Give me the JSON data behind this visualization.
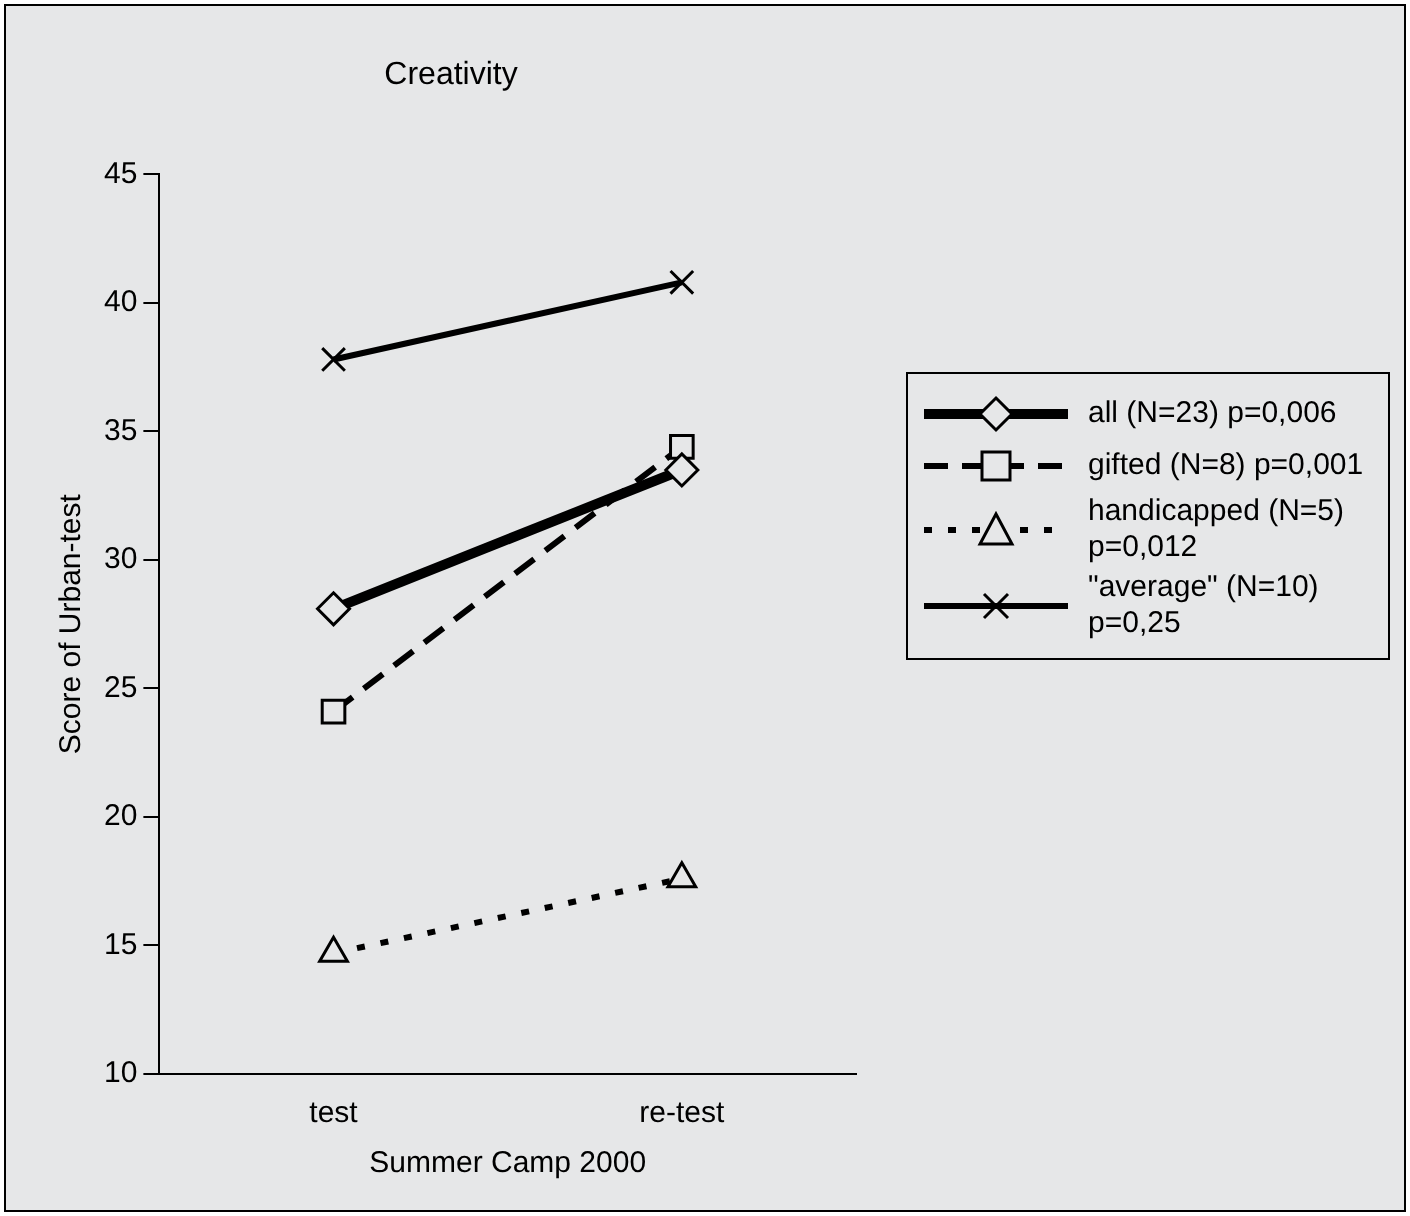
{
  "chart_data": {
    "type": "line",
    "title": "Creativity",
    "xlabel": "Summer Camp 2000",
    "ylabel": "Score of Urban-test",
    "categories": [
      "test",
      "re-test"
    ],
    "series": [
      {
        "name": "all (N=23) p=0,006",
        "color": "#000000",
        "values": [
          28.1,
          33.5
        ],
        "marker": "diamond",
        "line_style": "solid"
      },
      {
        "name": "gifted (N=8) p=0,001",
        "color": "#000000",
        "values": [
          24.1,
          34.4
        ],
        "marker": "square",
        "line_style": "dashed"
      },
      {
        "name": "handicapped (N=5) p=0,012",
        "color": "#000000",
        "values": [
          14.7,
          17.6
        ],
        "marker": "triangle",
        "line_style": "dotted"
      },
      {
        "name": "\"average\" (N=10) p=0,25",
        "color": "#000000",
        "values": [
          37.8,
          40.8
        ],
        "marker": "cross",
        "line_style": "solid"
      }
    ],
    "ylim": [
      10,
      45
    ],
    "yticks": [
      10,
      15,
      20,
      25,
      30,
      35,
      40,
      45
    ],
    "grid": false,
    "legend": "right"
  }
}
